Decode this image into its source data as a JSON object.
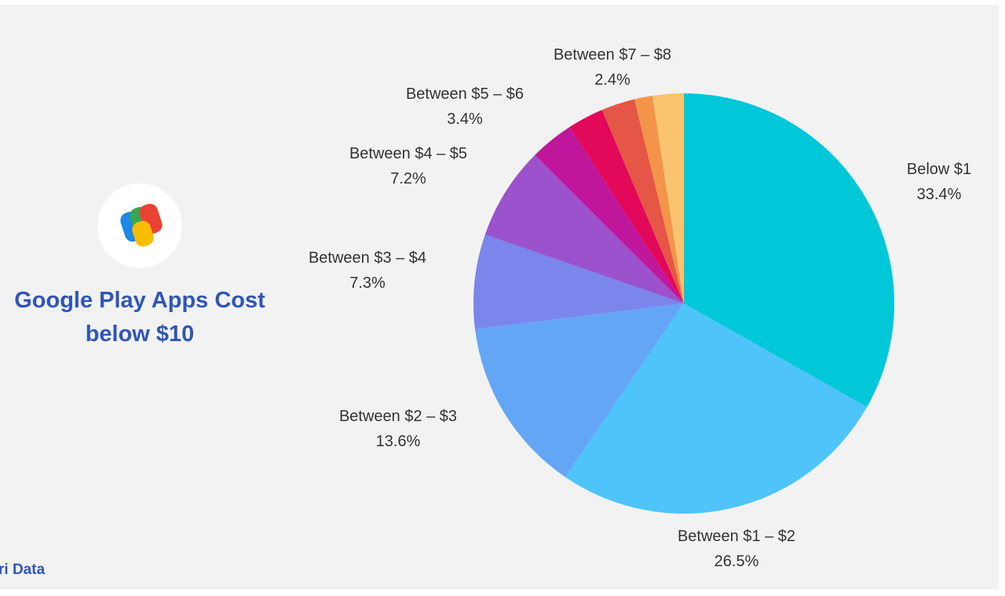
{
  "header": {
    "title_line1": "Google Play Apps Cost",
    "title_line2": "below $10"
  },
  "footer": {
    "source": "ri Data"
  },
  "logo": {
    "icon": "google-pay-icon"
  },
  "colors": {
    "title": "#2f56b8",
    "background": "#f3f2f3"
  },
  "chart_data": {
    "type": "pie",
    "title": "Google Play Apps Cost below $10",
    "start_angle_deg": 0,
    "direction": "clockwise",
    "slices": [
      {
        "label": "Below $1",
        "value": 33.4,
        "value_label": "33.4%",
        "color": "#00c8d9"
      },
      {
        "label": "Between $1 – $2",
        "value": 26.5,
        "value_label": "26.5%",
        "color": "#4ec4fb"
      },
      {
        "label": "Between $2 – $3",
        "value": 13.6,
        "value_label": "13.6%",
        "color": "#64a6f6"
      },
      {
        "label": "Between $3 – $4",
        "value": 7.3,
        "value_label": "7.3%",
        "color": "#7a86eb"
      },
      {
        "label": "Between $4 – $5",
        "value": 7.2,
        "value_label": "7.2%",
        "color": "#9b52cc"
      },
      {
        "label": "Between $5 – $6",
        "value": 3.4,
        "value_label": "3.4%",
        "color": "#c0169c"
      },
      {
        "label": "",
        "value": 2.8,
        "value_label": "",
        "color": "#e2085a"
      },
      {
        "label": "",
        "value": 2.6,
        "value_label": "",
        "color": "#e55646"
      },
      {
        "label": "",
        "value": 1.4,
        "value_label": "",
        "color": "#f4944a"
      },
      {
        "label": "Between $7 – $8",
        "value": 2.4,
        "value_label": "2.4%",
        "color": "#fac36f"
      }
    ]
  }
}
